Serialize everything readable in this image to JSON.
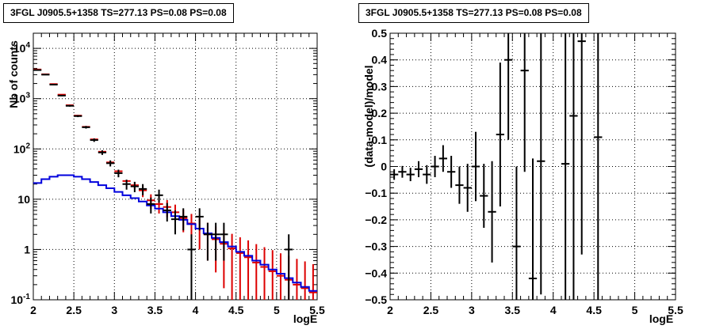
{
  "chart_data": [
    {
      "type": "line",
      "title": "3FGL J0905.5+1358 TS=277.13 PS=0.08 PS=0.08",
      "xlabel": "logE",
      "ylabel": "Nb of counts",
      "xlim": [
        2,
        5.5
      ],
      "ylim": [
        0.1,
        20000
      ],
      "yscale": "log",
      "grid": true,
      "xticks": [
        "2",
        "2.5",
        "3",
        "3.5",
        "4",
        "4.5",
        "5",
        "5.5"
      ],
      "yticks": [
        "10^{-1}",
        "1",
        "10",
        "10^{2}",
        "10^{3}",
        "10^{4}"
      ],
      "bins_x": [
        2.05,
        2.15,
        2.25,
        2.35,
        2.45,
        2.55,
        2.65,
        2.75,
        2.85,
        2.95,
        3.05,
        3.15,
        3.25,
        3.35,
        3.45,
        3.55,
        3.65,
        3.75,
        3.85,
        3.95,
        4.05,
        4.15,
        4.25,
        4.35,
        4.45,
        4.55,
        4.65,
        4.75,
        4.85,
        4.95,
        5.05,
        5.15,
        5.25,
        5.35,
        5.45
      ],
      "series": [
        {
          "kind": "data",
          "color": "#000000",
          "values": [
            3700,
            3000,
            1900,
            1150,
            720,
            450,
            270,
            150,
            85,
            52,
            33,
            20,
            18,
            16,
            8,
            12,
            6,
            4,
            4.5,
            1,
            4.5,
            2,
            2,
            2,
            null,
            null,
            null,
            null,
            null,
            null,
            null,
            1,
            null,
            null,
            null
          ],
          "err_low": [
            60,
            55,
            44,
            34,
            27,
            21,
            16,
            12,
            9,
            7.2,
            5.7,
            4.5,
            4.2,
            4,
            2.8,
            3.5,
            2.4,
            2,
            2.1,
            1,
            2.1,
            1.4,
            1.4,
            1.4,
            null,
            null,
            null,
            null,
            null,
            null,
            null,
            1,
            null,
            null,
            null
          ],
          "err_high": [
            60,
            55,
            44,
            34,
            27,
            21,
            16,
            12,
            9,
            7.2,
            5.7,
            4.5,
            4.2,
            4,
            2.8,
            3.5,
            2.4,
            2,
            2.1,
            1,
            2.1,
            1.4,
            1.4,
            1.4,
            null,
            null,
            null,
            null,
            null,
            null,
            null,
            1,
            null,
            null,
            null
          ]
        },
        {
          "kind": "model",
          "color": "#dd0000",
          "values": [
            3800,
            3050,
            1950,
            1200,
            740,
            460,
            275,
            155,
            88,
            54,
            36,
            23,
            19,
            15,
            9.5,
            8,
            7,
            5.5,
            4.2,
            3.3,
            2.6,
            2,
            1.6,
            1.3,
            1.05,
            0.85,
            0.7,
            0.55,
            0.45,
            0.37,
            0.3,
            0.25,
            0.2,
            0.17,
            0.14
          ],
          "err_low": [
            0,
            0,
            0,
            0,
            0,
            0,
            0,
            0,
            0,
            0,
            0,
            0,
            3,
            4,
            3,
            2.8,
            2.6,
            2.3,
            2,
            1.8,
            1.6,
            1.4,
            1.25,
            1.13,
            1.0,
            0.9,
            0.82,
            0.73,
            0.66,
            0.6,
            0.54,
            0.5,
            0.45,
            0.41,
            0.37
          ],
          "err_high": [
            0,
            0,
            0,
            0,
            0,
            0,
            0,
            0,
            0,
            0,
            0,
            0,
            3,
            4,
            3,
            2.8,
            2.6,
            2.3,
            2,
            1.8,
            1.6,
            1.4,
            1.25,
            1.13,
            1.0,
            0.9,
            0.82,
            0.73,
            0.66,
            0.6,
            0.54,
            0.5,
            0.45,
            0.41,
            0.37
          ]
        },
        {
          "kind": "component",
          "color": "#0000dd",
          "values": [
            21,
            25,
            28,
            30,
            30,
            28,
            25,
            22,
            19,
            16.5,
            14,
            12,
            10.5,
            9,
            7.5,
            6.5,
            5.5,
            4.6,
            3.9,
            3.2,
            2.6,
            2.1,
            1.7,
            1.4,
            1.15,
            0.9,
            0.75,
            0.6,
            0.5,
            0.4,
            0.33,
            0.27,
            0.22,
            0.18,
            0.15
          ]
        }
      ]
    },
    {
      "type": "scatter",
      "title": "3FGL J0905.5+1358 TS=277.13 PS=0.08 PS=0.08",
      "xlabel": "logE",
      "ylabel": "(data-model)/model",
      "xlim": [
        2,
        5.5
      ],
      "ylim": [
        -0.5,
        0.5
      ],
      "grid": true,
      "xticks": [
        "2",
        "2.5",
        "3",
        "3.5",
        "4",
        "4.5",
        "5",
        "5.5"
      ],
      "yticks": [
        "-0.5",
        "-0.4",
        "-0.3",
        "-0.2",
        "-0.1",
        "0",
        "0.1",
        "0.2",
        "0.3",
        "0.4",
        "0.5"
      ],
      "points": [
        {
          "x": 2.05,
          "y": -0.03,
          "err": 0.02
        },
        {
          "x": 2.15,
          "y": -0.02,
          "err": 0.022
        },
        {
          "x": 2.25,
          "y": -0.03,
          "err": 0.025
        },
        {
          "x": 2.35,
          "y": -0.01,
          "err": 0.03
        },
        {
          "x": 2.45,
          "y": -0.03,
          "err": 0.035
        },
        {
          "x": 2.55,
          "y": 0.0,
          "err": 0.04
        },
        {
          "x": 2.65,
          "y": 0.03,
          "err": 0.05
        },
        {
          "x": 2.75,
          "y": -0.02,
          "err": 0.06
        },
        {
          "x": 2.85,
          "y": -0.07,
          "err": 0.07
        },
        {
          "x": 2.95,
          "y": -0.08,
          "err": 0.09
        },
        {
          "x": 3.05,
          "y": 0.0,
          "err": 0.13
        },
        {
          "x": 3.15,
          "y": -0.11,
          "err": 0.12
        },
        {
          "x": 3.25,
          "y": -0.17,
          "err": 0.19
        },
        {
          "x": 3.35,
          "y": 0.12,
          "err": 0.27
        },
        {
          "x": 3.45,
          "y": 0.4,
          "err": 0.3
        },
        {
          "x": 3.55,
          "y": -0.3,
          "err": 0.3
        },
        {
          "x": 3.65,
          "y": 0.36,
          "err": 0.38
        },
        {
          "x": 3.75,
          "y": -0.42,
          "err": 0.45
        },
        {
          "x": 3.85,
          "y": 0.02,
          "err": 0.5
        },
        {
          "x": 4.15,
          "y": 0.01,
          "err": 0.65
        },
        {
          "x": 4.25,
          "y": 0.19,
          "err": 0.7
        },
        {
          "x": 4.35,
          "y": 0.47,
          "err": 0.8
        },
        {
          "x": 4.55,
          "y": 0.11,
          "err": 0.9
        }
      ]
    }
  ]
}
